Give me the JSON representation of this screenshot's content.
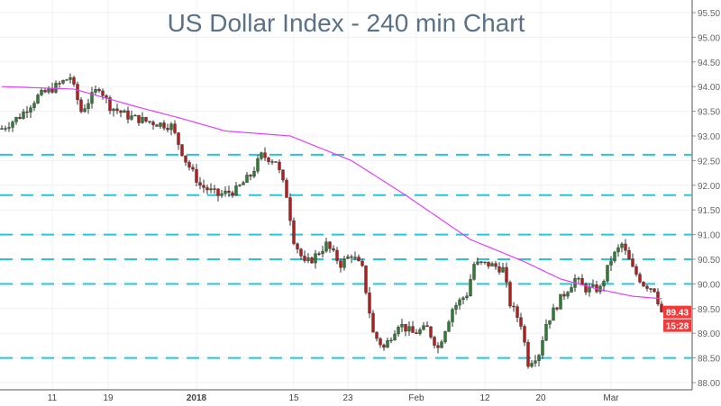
{
  "chart_data": {
    "type": "candlestick",
    "title": "US Dollar Index - 240 min Chart",
    "ylim": [
      88.0,
      95.5
    ],
    "y_ticks": [
      "95.50",
      "95.00",
      "94.50",
      "94.00",
      "93.50",
      "93.00",
      "92.50",
      "92.00",
      "91.50",
      "91.00",
      "90.50",
      "90.00",
      "89.50",
      "89.00",
      "88.50",
      "88.00"
    ],
    "y_tick_values": [
      95.5,
      95.0,
      94.5,
      94.0,
      93.5,
      93.0,
      92.5,
      92.0,
      91.5,
      91.0,
      90.5,
      90.0,
      89.5,
      89.0,
      88.5,
      88.0
    ],
    "x_ticks": [
      {
        "label": "11",
        "candle": 14
      },
      {
        "label": "19",
        "candle": 29.5
      },
      {
        "label": "2018",
        "candle": 54
      },
      {
        "label": "15",
        "candle": 81
      },
      {
        "label": "23",
        "candle": 96
      },
      {
        "label": "Feb",
        "candle": 115
      },
      {
        "label": "12",
        "candle": 134
      },
      {
        "label": "20",
        "candle": 149.5
      },
      {
        "label": "Mar",
        "candle": 169
      }
    ],
    "candle_count": 184,
    "price_path": [
      [
        0,
        93.15
      ],
      [
        5,
        93.4
      ],
      [
        10,
        93.8
      ],
      [
        15,
        94.0
      ],
      [
        19,
        94.2
      ],
      [
        22,
        93.5
      ],
      [
        27,
        94.0
      ],
      [
        30,
        93.6
      ],
      [
        35,
        93.4
      ],
      [
        40,
        93.3
      ],
      [
        47,
        93.2
      ],
      [
        51,
        92.5
      ],
      [
        55,
        92.0
      ],
      [
        60,
        91.8
      ],
      [
        65,
        91.9
      ],
      [
        69,
        92.2
      ],
      [
        72,
        92.6
      ],
      [
        76,
        92.5
      ],
      [
        79,
        91.8
      ],
      [
        81,
        90.9
      ],
      [
        84,
        90.4
      ],
      [
        86,
        90.5
      ],
      [
        90,
        90.8
      ],
      [
        94,
        90.4
      ],
      [
        97,
        90.6
      ],
      [
        100,
        90.3
      ],
      [
        103,
        89.0
      ],
      [
        106,
        88.7
      ],
      [
        110,
        89.2
      ],
      [
        114,
        89.0
      ],
      [
        118,
        89.1
      ],
      [
        121,
        88.7
      ],
      [
        125,
        89.5
      ],
      [
        129,
        89.8
      ],
      [
        131,
        90.4
      ],
      [
        135,
        90.4
      ],
      [
        139,
        90.3
      ],
      [
        141,
        89.6
      ],
      [
        144,
        89.2
      ],
      [
        146,
        88.4
      ],
      [
        149,
        88.6
      ],
      [
        151,
        89.2
      ],
      [
        155,
        89.7
      ],
      [
        159,
        90.1
      ],
      [
        162,
        89.9
      ],
      [
        166,
        89.9
      ],
      [
        169,
        90.5
      ],
      [
        172,
        90.8
      ],
      [
        175,
        90.3
      ],
      [
        178,
        90.0
      ],
      [
        181,
        89.9
      ],
      [
        183,
        89.43
      ]
    ],
    "moving_average": [
      [
        0,
        94.0
      ],
      [
        20,
        93.95
      ],
      [
        37,
        93.6
      ],
      [
        50,
        93.35
      ],
      [
        62,
        93.1
      ],
      [
        80,
        93.0
      ],
      [
        97,
        92.5
      ],
      [
        112,
        91.8
      ],
      [
        130,
        90.9
      ],
      [
        145,
        90.45
      ],
      [
        155,
        90.1
      ],
      [
        165,
        89.9
      ],
      [
        175,
        89.75
      ],
      [
        183,
        89.7
      ]
    ],
    "horizontal_levels": [
      92.62,
      91.8,
      91.0,
      90.5,
      90.0,
      88.5
    ],
    "last_price": "89.43",
    "countdown": "15:28",
    "colors": {
      "up": "#2e7d32",
      "down": "#b71c1c",
      "ma": "#e040fb",
      "levels": "#26c6da",
      "label": "#f23a3a",
      "title": "#5a7186"
    }
  }
}
